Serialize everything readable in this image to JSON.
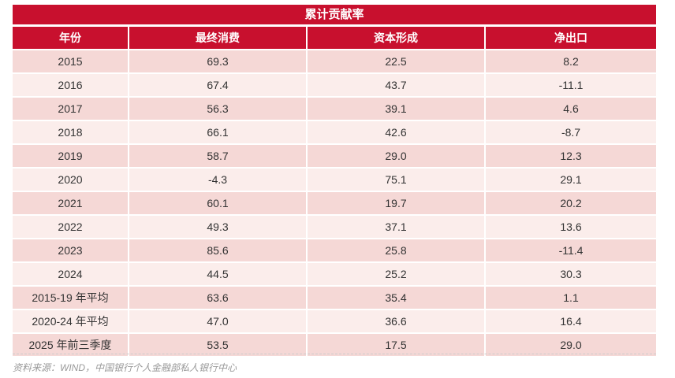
{
  "title": "累计贡献率",
  "headers": [
    "年份",
    "最终消费",
    "资本形成",
    "净出口"
  ],
  "rows": [
    [
      "2015",
      "69.3",
      "22.5",
      "8.2"
    ],
    [
      "2016",
      "67.4",
      "43.7",
      "-11.1"
    ],
    [
      "2017",
      "56.3",
      "39.1",
      "4.6"
    ],
    [
      "2018",
      "66.1",
      "42.6",
      "-8.7"
    ],
    [
      "2019",
      "58.7",
      "29.0",
      "12.3"
    ],
    [
      "2020",
      "-4.3",
      "75.1",
      "29.1"
    ],
    [
      "2021",
      "60.1",
      "19.7",
      "20.2"
    ],
    [
      "2022",
      "49.3",
      "37.1",
      "13.6"
    ],
    [
      "2023",
      "85.6",
      "25.8",
      "-11.4"
    ],
    [
      "2024",
      "44.5",
      "25.2",
      "30.3"
    ],
    [
      "2015-19 年平均",
      "63.6",
      "35.4",
      "1.1"
    ],
    [
      "2020-24 年平均",
      "47.0",
      "36.6",
      "16.4"
    ],
    [
      "2025 年前三季度",
      "53.5",
      "17.5",
      "29.0"
    ]
  ],
  "source": "资料来源：WIND，中国银行个人金融部私人银行中心",
  "colors": {
    "header_red": "#c8102e",
    "row_dark": "#f5d8d6",
    "row_light": "#fbedeb"
  }
}
